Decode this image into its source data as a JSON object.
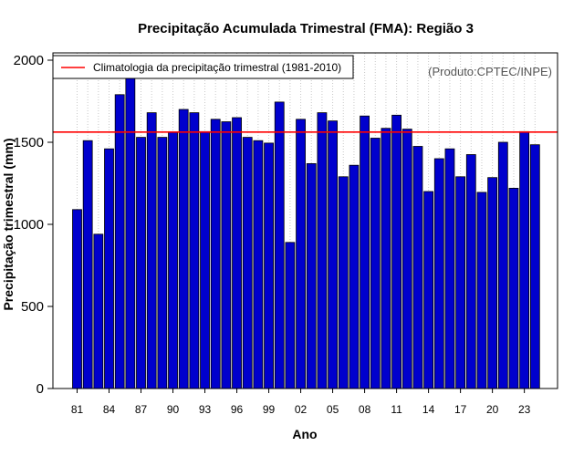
{
  "chart_data": {
    "type": "bar",
    "title": "Precipitação Acumulada Trimestral (FMA): Região 3",
    "xlabel": "Ano",
    "ylabel": "Precipitação trimestral (mm)",
    "source": "(Produto:CPTEC/INPE)",
    "ylim": [
      0,
      2000
    ],
    "yticks": [
      0,
      500,
      1000,
      1500,
      2000
    ],
    "grid": "vertical dotted",
    "legend_position": "top-left",
    "categories": [
      "81",
      "82",
      "83",
      "84",
      "85",
      "86",
      "87",
      "88",
      "89",
      "90",
      "91",
      "92",
      "93",
      "94",
      "95",
      "96",
      "97",
      "98",
      "99",
      "00",
      "01",
      "02",
      "03",
      "04",
      "05",
      "06",
      "07",
      "08",
      "09",
      "10",
      "11",
      "12",
      "13",
      "14",
      "15",
      "16",
      "17",
      "18",
      "19",
      "20",
      "21",
      "22",
      "23",
      "24"
    ],
    "xtick_labels": [
      "81",
      "84",
      "87",
      "90",
      "93",
      "96",
      "99",
      "02",
      "05",
      "08",
      "11",
      "14",
      "17",
      "20",
      "23"
    ],
    "series": [
      {
        "name": "Precipitação trimestral",
        "color": "#0000cd",
        "values": [
          1090,
          1510,
          940,
          1460,
          1790,
          1920,
          1530,
          1680,
          1530,
          1560,
          1700,
          1680,
          1565,
          1640,
          1625,
          1650,
          1530,
          1510,
          1495,
          1745,
          890,
          1640,
          1370,
          1680,
          1630,
          1290,
          1360,
          1660,
          1525,
          1585,
          1665,
          1580,
          1475,
          1200,
          1400,
          1460,
          1290,
          1425,
          1195,
          1285,
          1500,
          1220,
          1565,
          1485
        ]
      }
    ],
    "reference_line": {
      "label": "Climatologia da precipitação trimestral (1981-2010)",
      "value": 1562,
      "color": "#ff0000"
    }
  }
}
